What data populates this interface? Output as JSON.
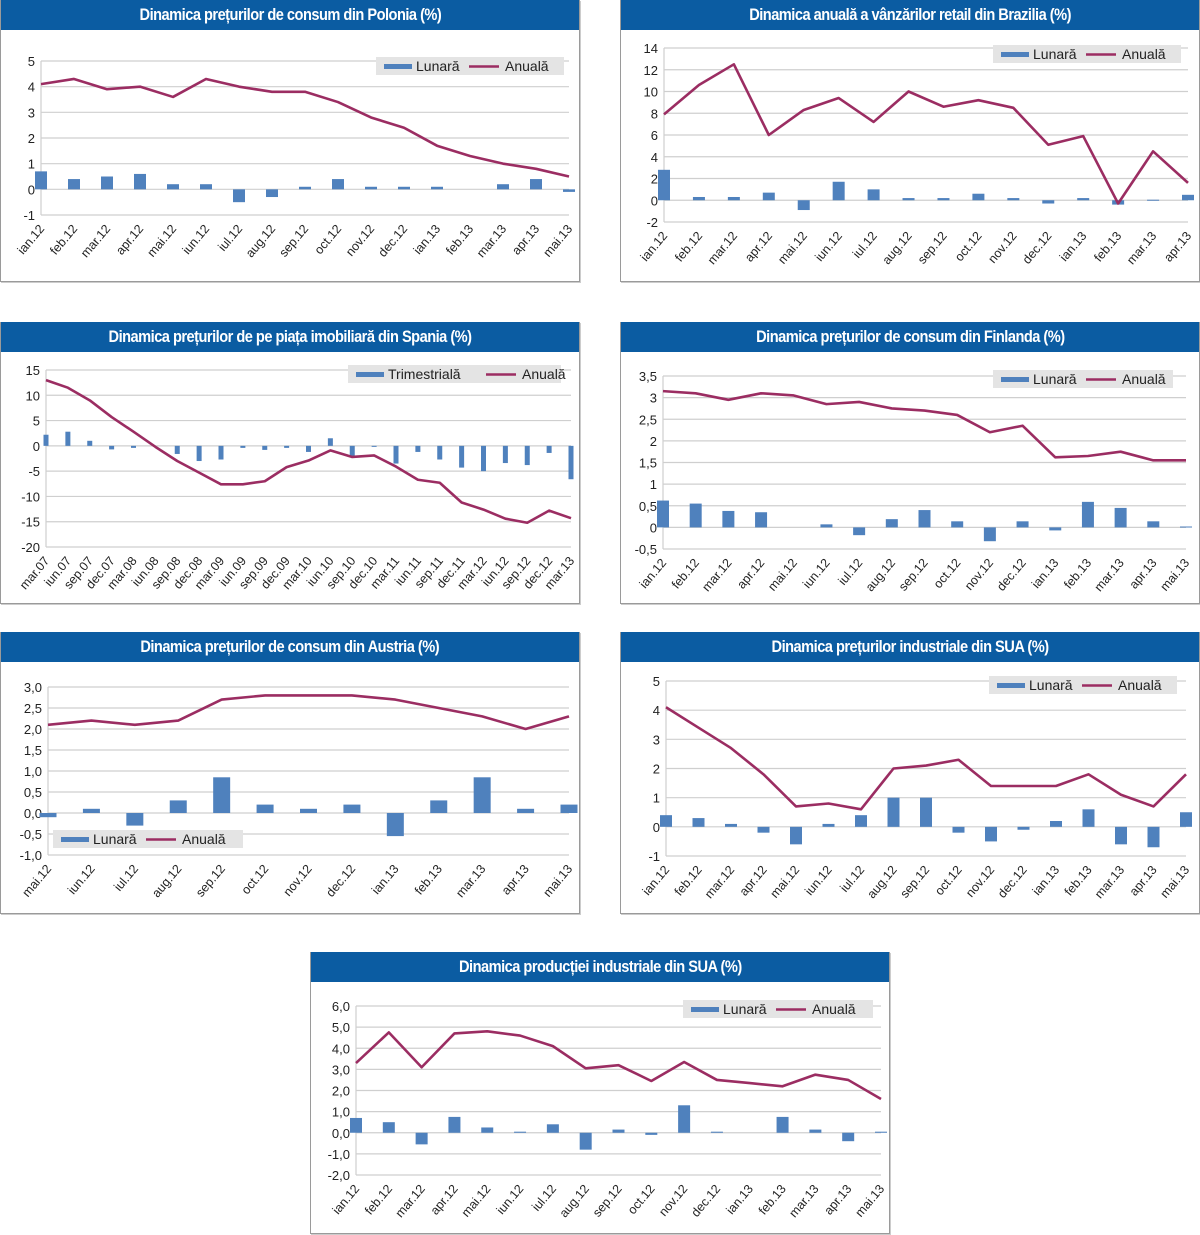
{
  "colors": {
    "bar": "#4f81bd",
    "line": "#9b2d62",
    "title_bg": "#0b5ca2",
    "legend_bg": "#e4e4e4",
    "grid": "#cfcfcf"
  },
  "chart_data": [
    {
      "type": "bar+line",
      "title": "Dinamica prețurilor de consum din Polonia (%)",
      "legend": {
        "bar": "Lunară",
        "line": "Anuală",
        "placement": "top-right"
      },
      "categories": [
        "ian.12",
        "feb.12",
        "mar.12",
        "apr.12",
        "mai.12",
        "iun.12",
        "iul.12",
        "aug.12",
        "sep.12",
        "oct.12",
        "nov.12",
        "dec.12",
        "ian.13",
        "feb.13",
        "mar.13",
        "apr.13",
        "mai.13"
      ],
      "series": [
        {
          "name": "Lunară",
          "type": "bar",
          "values": [
            0.7,
            0.4,
            0.5,
            0.6,
            0.2,
            0.2,
            -0.5,
            -0.3,
            0.1,
            0.4,
            0.1,
            0.1,
            0.1,
            0,
            0.2,
            0.4,
            -0.1
          ]
        },
        {
          "name": "Anuală",
          "type": "line",
          "values": [
            4.1,
            4.3,
            3.9,
            4.0,
            3.6,
            4.3,
            4.0,
            3.8,
            3.8,
            3.4,
            2.8,
            2.4,
            1.7,
            1.3,
            1.0,
            0.8,
            0.5
          ]
        }
      ],
      "ylim": [
        -1,
        5
      ],
      "yticks": [
        "5",
        "4",
        "3",
        "2",
        "1",
        "0",
        "-1"
      ],
      "grid": true
    },
    {
      "type": "bar+line",
      "title": "Dinamica anuală a vânzărilor retail din Brazilia (%)",
      "legend": {
        "bar": "Lunară",
        "line": "Anuală",
        "placement": "top-right"
      },
      "categories": [
        "ian.12",
        "feb.12",
        "mar.12",
        "apr.12",
        "mai.12",
        "iun.12",
        "iul.12",
        "aug.12",
        "sep.12",
        "oct.12",
        "nov.12",
        "dec.12",
        "ian.13",
        "feb.13",
        "mar.13",
        "apr.13"
      ],
      "series": [
        {
          "name": "Lunară",
          "type": "bar",
          "values": [
            2.8,
            0.3,
            0.3,
            0.7,
            -0.9,
            1.7,
            1.0,
            0.2,
            0.2,
            0.6,
            0.2,
            -0.3,
            0.2,
            -0.4,
            0.05,
            0.5
          ]
        },
        {
          "name": "Anuală",
          "type": "line",
          "values": [
            7.9,
            10.6,
            12.5,
            6.0,
            8.3,
            9.4,
            7.2,
            10.0,
            8.6,
            9.2,
            8.5,
            5.1,
            5.9,
            -0.3,
            4.5,
            1.6
          ]
        }
      ],
      "ylim": [
        -2,
        14
      ],
      "yticks": [
        "14",
        "12",
        "10",
        "8",
        "6",
        "4",
        "2",
        "0",
        "-2"
      ],
      "grid": true
    },
    {
      "type": "bar+line",
      "title": "Dinamica prețurilor de pe piața imobiliară din Spania (%)",
      "legend": {
        "bar": "Trimestrială",
        "line": "Anuală",
        "placement": "top-right"
      },
      "categories": [
        "mar.07",
        "iun.07",
        "sep.07",
        "dec.07",
        "mar.08",
        "iun.08",
        "sep.08",
        "dec.08",
        "mar.09",
        "iun.09",
        "sep.09",
        "dec.09",
        "mar.10",
        "iun.10",
        "sep.10",
        "dec.10",
        "mar.11",
        "iun.11",
        "sep.11",
        "dec.11",
        "mar.12",
        "iun.12",
        "sep.12",
        "dec.12",
        "mar.13"
      ],
      "series": [
        {
          "name": "Trimestrială",
          "type": "bar",
          "values": [
            2.2,
            2.8,
            1.0,
            -0.7,
            -0.4,
            0,
            -1.6,
            -3.0,
            -2.7,
            -0.4,
            -0.8,
            -0.4,
            -1.2,
            1.5,
            -2.1,
            -0.2,
            -3.5,
            -1.2,
            -2.7,
            -4.3,
            -5.0,
            -3.4,
            -3.8,
            -1.4,
            -6.6
          ]
        },
        {
          "name": "Anuală",
          "type": "line",
          "values": [
            13.0,
            11.5,
            9.0,
            5.7,
            2.8,
            -0.2,
            -3.0,
            -5.3,
            -7.6,
            -7.6,
            -7.0,
            -4.2,
            -2.9,
            -0.9,
            -2.2,
            -1.9,
            -4.1,
            -6.7,
            -7.3,
            -11.2,
            -12.6,
            -14.4,
            -15.2,
            -12.8,
            -14.3
          ]
        }
      ],
      "ylim": [
        -20,
        15
      ],
      "yticks": [
        "15",
        "10",
        "5",
        "0",
        "-5",
        "-10",
        "-15",
        "-20"
      ],
      "grid": true
    },
    {
      "type": "bar+line",
      "title": "Dinamica prețurilor de consum din Finlanda (%)",
      "legend": {
        "bar": "Lunară",
        "line": "Anuală",
        "placement": "top-right"
      },
      "categories": [
        "ian.12",
        "feb.12",
        "mar.12",
        "apr.12",
        "mai.12",
        "iun.12",
        "iul.12",
        "aug.12",
        "sep.12",
        "oct.12",
        "nov.12",
        "dec.12",
        "ian.13",
        "feb.13",
        "mar.13",
        "apr.13",
        "mai.13"
      ],
      "series": [
        {
          "name": "Lunară",
          "type": "bar",
          "values": [
            0.62,
            0.55,
            0.38,
            0.35,
            0,
            0.07,
            -0.18,
            0.19,
            0.4,
            0.14,
            -0.32,
            0.14,
            -0.07,
            0.59,
            0.45,
            0.14,
            0.02
          ]
        },
        {
          "name": "Anuală",
          "type": "line",
          "values": [
            3.15,
            3.1,
            2.95,
            3.1,
            3.05,
            2.85,
            2.9,
            2.75,
            2.7,
            2.6,
            2.2,
            2.35,
            1.62,
            1.65,
            1.75,
            1.55,
            1.55
          ]
        }
      ],
      "ylim": [
        -0.5,
        3.5
      ],
      "yticks": [
        "3,5",
        "3",
        "2,5",
        "2",
        "1,5",
        "1",
        "0,5",
        "0",
        "-0,5"
      ],
      "grid": true
    },
    {
      "type": "bar+line",
      "title": "Dinamica prețurilor de consum din Austria (%)",
      "legend": {
        "bar": "Lunară",
        "line": "Anuală",
        "placement": "bottom-left"
      },
      "categories": [
        "mai.12",
        "iun.12",
        "iul.12",
        "aug.12",
        "sep.12",
        "oct.12",
        "nov.12",
        "dec.12",
        "ian.13",
        "feb.13",
        "mar.13",
        "apr.13",
        "mai.13"
      ],
      "series": [
        {
          "name": "Lunară",
          "type": "bar",
          "values": [
            -0.1,
            0.1,
            -0.3,
            0.3,
            0.85,
            0.2,
            0.1,
            0.2,
            -0.55,
            0.3,
            0.85,
            0.1,
            0.2
          ]
        },
        {
          "name": "Anuală",
          "type": "line",
          "values": [
            2.1,
            2.2,
            2.1,
            2.2,
            2.7,
            2.8,
            2.8,
            2.8,
            2.7,
            2.5,
            2.3,
            2.0,
            2.3
          ]
        }
      ],
      "ylim": [
        -1,
        3
      ],
      "yticks": [
        "3,0",
        "2,5",
        "2,0",
        "1,5",
        "1,0",
        "0,5",
        "0,0",
        "-0,5",
        "-1,0"
      ],
      "grid": true
    },
    {
      "type": "bar+line",
      "title": "Dinamica prețurilor industriale din SUA (%)",
      "legend": {
        "bar": "Lunară",
        "line": "Anuală",
        "placement": "top-right"
      },
      "categories": [
        "ian.12",
        "feb.12",
        "mar.12",
        "apr.12",
        "mai.12",
        "iun.12",
        "iul.12",
        "aug.12",
        "sep.12",
        "oct.12",
        "nov.12",
        "dec.12",
        "ian.13",
        "feb.13",
        "mar.13",
        "apr.13",
        "mai.13"
      ],
      "series": [
        {
          "name": "Lunară",
          "type": "bar",
          "values": [
            0.4,
            0.3,
            0.1,
            -0.2,
            -0.6,
            0.1,
            0.4,
            1.0,
            1.0,
            -0.2,
            -0.5,
            -0.1,
            0.2,
            0.6,
            -0.6,
            -0.7,
            0.5
          ]
        },
        {
          "name": "Anuală",
          "type": "line",
          "values": [
            4.1,
            3.4,
            2.7,
            1.8,
            0.7,
            0.8,
            0.6,
            2.0,
            2.1,
            2.3,
            1.4,
            1.4,
            1.4,
            1.8,
            1.1,
            0.7,
            1.8
          ]
        }
      ],
      "ylim": [
        -1,
        5
      ],
      "yticks": [
        "5",
        "4",
        "3",
        "2",
        "1",
        "0",
        "-1"
      ],
      "grid": true
    },
    {
      "type": "bar+line",
      "title": "Dinamica producției industriale din SUA (%)",
      "legend": {
        "bar": "Lunară",
        "line": "Anuală",
        "placement": "top-right"
      },
      "categories": [
        "ian.12",
        "feb.12",
        "mar.12",
        "apr.12",
        "mai.12",
        "iun.12",
        "iul.12",
        "aug.12",
        "sep.12",
        "oct.12",
        "nov.12",
        "dec.12",
        "ian.13",
        "feb.13",
        "mar.13",
        "apr.13",
        "mai.13"
      ],
      "series": [
        {
          "name": "Lunară",
          "type": "bar",
          "values": [
            0.7,
            0.5,
            -0.55,
            0.75,
            0.25,
            0.05,
            0.4,
            -0.8,
            0.15,
            -0.1,
            1.3,
            0.05,
            0,
            0.75,
            0.15,
            -0.4,
            0.05
          ]
        },
        {
          "name": "Anuală",
          "type": "line",
          "values": [
            3.3,
            4.75,
            3.1,
            4.7,
            4.8,
            4.6,
            4.1,
            3.05,
            3.2,
            2.45,
            3.35,
            2.5,
            2.35,
            2.2,
            2.75,
            2.5,
            1.6
          ]
        }
      ],
      "ylim": [
        -2,
        6
      ],
      "yticks": [
        "6,0",
        "5,0",
        "4,0",
        "3,0",
        "2,0",
        "1,0",
        "0,0",
        "-1,0",
        "-2,0"
      ],
      "grid": true
    }
  ]
}
